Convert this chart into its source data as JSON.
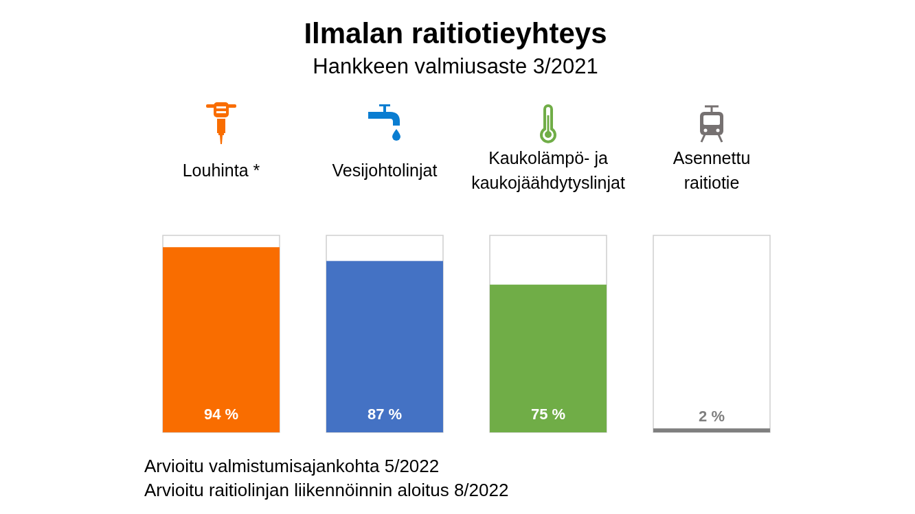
{
  "chart_data": {
    "type": "bar",
    "title": "Ilmalan raitiotieyhteys",
    "subtitle": "Hankkeen valmiusaste 3/2021",
    "categories": [
      "Louhinta *",
      "Vesijohtolinjat",
      "Kaukolämpö- ja kaukojäähdytyslinjat",
      "Asennettu raitiotie"
    ],
    "values": [
      94,
      87,
      75,
      2
    ],
    "colors": [
      "#f96d00",
      "#4472c4",
      "#70ad47",
      "#7f7f7f"
    ],
    "value_labels": [
      "94 %",
      "87 %",
      "75 %",
      "2 %"
    ],
    "ylim": [
      0,
      100
    ],
    "tick_labels": "x",
    "annotations": [
      "Arvioitu valmistumisajankohta 5/2022",
      "Arvioitu raitiolinjan liikennöinnin aloitus 8/2022"
    ]
  }
}
